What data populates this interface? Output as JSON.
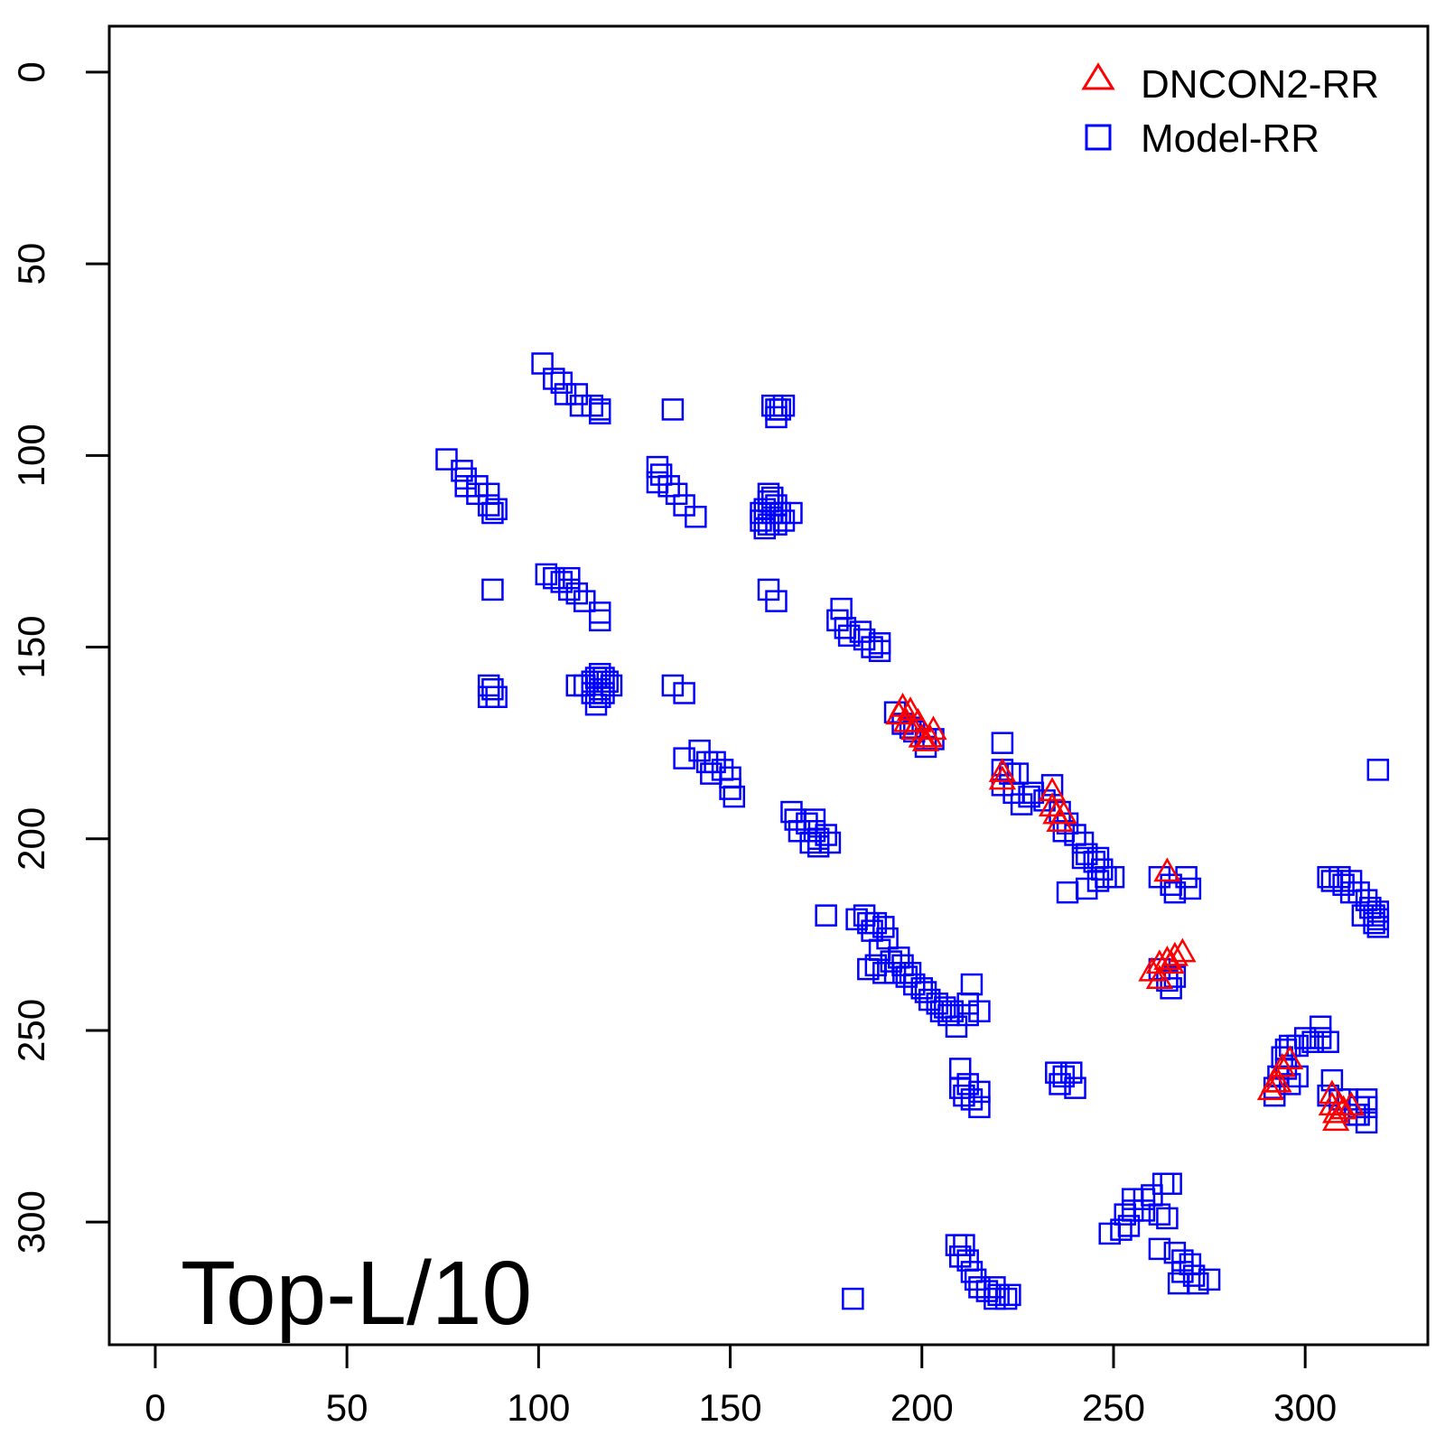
{
  "chart_data": {
    "type": "scatter",
    "title": "",
    "xlabel": "",
    "ylabel": "",
    "xlim": [
      -12,
      332
    ],
    "ylim": [
      332,
      -12
    ],
    "y_axis_inverted": true,
    "x_ticks": [
      0,
      50,
      100,
      150,
      200,
      250,
      300
    ],
    "y_ticks": [
      0,
      50,
      100,
      150,
      200,
      250,
      300
    ],
    "x_tick_labels": [
      "0",
      "50",
      "100",
      "150",
      "200",
      "250",
      "300"
    ],
    "y_tick_labels": [
      "0",
      "50",
      "100",
      "150",
      "200",
      "250",
      "300"
    ],
    "annotation": "Top-L/10",
    "legend": {
      "position": "top-right",
      "entries": [
        {
          "label": "DNCON2-RR",
          "marker": "triangle",
          "color": "#ff0000"
        },
        {
          "label": "Model-RR",
          "marker": "square",
          "color": "#0000ff"
        }
      ]
    },
    "series": [
      {
        "name": "Model-RR",
        "marker": "square",
        "color": "#0000ff",
        "points": [
          [
            101,
            76
          ],
          [
            104,
            80
          ],
          [
            106,
            81
          ],
          [
            107,
            84
          ],
          [
            110,
            84
          ],
          [
            111,
            87
          ],
          [
            114,
            87
          ],
          [
            116,
            88
          ],
          [
            116,
            89
          ],
          [
            135,
            88
          ],
          [
            161,
            87
          ],
          [
            162,
            88
          ],
          [
            163,
            88
          ],
          [
            164,
            87
          ],
          [
            162,
            90
          ],
          [
            76,
            101
          ],
          [
            80,
            104
          ],
          [
            81,
            106
          ],
          [
            81,
            108
          ],
          [
            84,
            108
          ],
          [
            84,
            110
          ],
          [
            87,
            110
          ],
          [
            87,
            113
          ],
          [
            88,
            115
          ],
          [
            89,
            114
          ],
          [
            131,
            103
          ],
          [
            132,
            105
          ],
          [
            131,
            107
          ],
          [
            134,
            108
          ],
          [
            136,
            110
          ],
          [
            138,
            113
          ],
          [
            141,
            116
          ],
          [
            158,
            115
          ],
          [
            159,
            114
          ],
          [
            160,
            112
          ],
          [
            161,
            111
          ],
          [
            161,
            115
          ],
          [
            162,
            113
          ],
          [
            163,
            115
          ],
          [
            160,
            118
          ],
          [
            159,
            119
          ],
          [
            162,
            118
          ],
          [
            164,
            117
          ],
          [
            166,
            115
          ],
          [
            158,
            117
          ],
          [
            160,
            110
          ],
          [
            88,
            135
          ],
          [
            102,
            131
          ],
          [
            104,
            132
          ],
          [
            106,
            133
          ],
          [
            108,
            132
          ],
          [
            108,
            135
          ],
          [
            110,
            136
          ],
          [
            112,
            138
          ],
          [
            116,
            141
          ],
          [
            116,
            143
          ],
          [
            160,
            135
          ],
          [
            162,
            138
          ],
          [
            179,
            140
          ],
          [
            178,
            143
          ],
          [
            180,
            145
          ],
          [
            181,
            147
          ],
          [
            184,
            146
          ],
          [
            185,
            148
          ],
          [
            187,
            150
          ],
          [
            189,
            151
          ],
          [
            189,
            149
          ],
          [
            87,
            160
          ],
          [
            88,
            161
          ],
          [
            87,
            163
          ],
          [
            89,
            163
          ],
          [
            110,
            160
          ],
          [
            112,
            160
          ],
          [
            114,
            159
          ],
          [
            115,
            158
          ],
          [
            116,
            157
          ],
          [
            117,
            158
          ],
          [
            118,
            159
          ],
          [
            119,
            160
          ],
          [
            116,
            161
          ],
          [
            114,
            162
          ],
          [
            116,
            163
          ],
          [
            115,
            165
          ],
          [
            117,
            162
          ],
          [
            135,
            160
          ],
          [
            138,
            162
          ],
          [
            193,
            167
          ],
          [
            195,
            170
          ],
          [
            197,
            171
          ],
          [
            198,
            172
          ],
          [
            201,
            174
          ],
          [
            201,
            176
          ],
          [
            203,
            174
          ],
          [
            138,
            179
          ],
          [
            142,
            177
          ],
          [
            144,
            180
          ],
          [
            146,
            180
          ],
          [
            145,
            183
          ],
          [
            148,
            182
          ],
          [
            150,
            184
          ],
          [
            150,
            187
          ],
          [
            151,
            189
          ],
          [
            221,
            175
          ],
          [
            221,
            182
          ],
          [
            223,
            183
          ],
          [
            225,
            183
          ],
          [
            221,
            186
          ],
          [
            224,
            188
          ],
          [
            226,
            191
          ],
          [
            228,
            189
          ],
          [
            166,
            193
          ],
          [
            167,
            195
          ],
          [
            168,
            198
          ],
          [
            170,
            196
          ],
          [
            172,
            195
          ],
          [
            172,
            198
          ],
          [
            173,
            200
          ],
          [
            175,
            199
          ],
          [
            171,
            201
          ],
          [
            173,
            202
          ],
          [
            176,
            201
          ],
          [
            229,
            188
          ],
          [
            232,
            190
          ],
          [
            234,
            186
          ],
          [
            236,
            193
          ],
          [
            238,
            196
          ],
          [
            237,
            198
          ],
          [
            240,
            199
          ],
          [
            242,
            201
          ],
          [
            243,
            204
          ],
          [
            245,
            206
          ],
          [
            246,
            205
          ],
          [
            247,
            208
          ],
          [
            248,
            210
          ],
          [
            250,
            210
          ],
          [
            246,
            211
          ],
          [
            238,
            214
          ],
          [
            243,
            213
          ],
          [
            242,
            205
          ],
          [
            262,
            210
          ],
          [
            265,
            212
          ],
          [
            266,
            214
          ],
          [
            269,
            210
          ],
          [
            270,
            213
          ],
          [
            175,
            220
          ],
          [
            183,
            221
          ],
          [
            185,
            220
          ],
          [
            186,
            222
          ],
          [
            187,
            224
          ],
          [
            188,
            222
          ],
          [
            190,
            223
          ],
          [
            191,
            226
          ],
          [
            189,
            229
          ],
          [
            192,
            232
          ],
          [
            194,
            231
          ],
          [
            195,
            233
          ],
          [
            193,
            235
          ],
          [
            196,
            236
          ],
          [
            197,
            235
          ],
          [
            198,
            238
          ],
          [
            200,
            239
          ],
          [
            201,
            240
          ],
          [
            202,
            242
          ],
          [
            204,
            243
          ],
          [
            205,
            245
          ],
          [
            206,
            244
          ],
          [
            207,
            246
          ],
          [
            208,
            245
          ],
          [
            209,
            249
          ],
          [
            212,
            243
          ],
          [
            213,
            238
          ],
          [
            212,
            246
          ],
          [
            215,
            245
          ],
          [
            186,
            234
          ],
          [
            188,
            233
          ],
          [
            190,
            235
          ],
          [
            262,
            234
          ],
          [
            264,
            237
          ],
          [
            265,
            239
          ],
          [
            266,
            236
          ],
          [
            306,
            210
          ],
          [
            307,
            211
          ],
          [
            309,
            210
          ],
          [
            310,
            212
          ],
          [
            312,
            211
          ],
          [
            312,
            214
          ],
          [
            314,
            214
          ],
          [
            316,
            216
          ],
          [
            317,
            218
          ],
          [
            318,
            220
          ],
          [
            319,
            219
          ],
          [
            319,
            221
          ],
          [
            318,
            222
          ],
          [
            319,
            223
          ],
          [
            315,
            220
          ],
          [
            319,
            182
          ],
          [
            304,
            249
          ],
          [
            300,
            252
          ],
          [
            298,
            254
          ],
          [
            296,
            254
          ],
          [
            295,
            255
          ],
          [
            294,
            257
          ],
          [
            295,
            260
          ],
          [
            293,
            262
          ],
          [
            292,
            265
          ],
          [
            292,
            267
          ],
          [
            298,
            262
          ],
          [
            296,
            264
          ],
          [
            302,
            253
          ],
          [
            304,
            252
          ],
          [
            306,
            253
          ],
          [
            307,
            263
          ],
          [
            306,
            267
          ],
          [
            309,
            268
          ],
          [
            311,
            268
          ],
          [
            314,
            270
          ],
          [
            316,
            270
          ],
          [
            314,
            272
          ],
          [
            316,
            274
          ],
          [
            313,
            272
          ],
          [
            316,
            268
          ],
          [
            210,
            260
          ],
          [
            210,
            265
          ],
          [
            211,
            267
          ],
          [
            212,
            264
          ],
          [
            213,
            268
          ],
          [
            215,
            266
          ],
          [
            215,
            270
          ],
          [
            235,
            261
          ],
          [
            236,
            264
          ],
          [
            237,
            262
          ],
          [
            239,
            261
          ],
          [
            240,
            265
          ],
          [
            263,
            290
          ],
          [
            265,
            290
          ],
          [
            260,
            293
          ],
          [
            258,
            294
          ],
          [
            255,
            294
          ],
          [
            255,
            297
          ],
          [
            253,
            298
          ],
          [
            254,
            301
          ],
          [
            252,
            302
          ],
          [
            249,
            303
          ],
          [
            258,
            297
          ],
          [
            262,
            298
          ],
          [
            264,
            299
          ],
          [
            209,
            306
          ],
          [
            211,
            306
          ],
          [
            210,
            309
          ],
          [
            212,
            310
          ],
          [
            213,
            313
          ],
          [
            214,
            315
          ],
          [
            215,
            317
          ],
          [
            217,
            318
          ],
          [
            219,
            317
          ],
          [
            220,
            319
          ],
          [
            222,
            320
          ],
          [
            223,
            319
          ],
          [
            219,
            320
          ],
          [
            182,
            320
          ],
          [
            262,
            307
          ],
          [
            266,
            308
          ],
          [
            268,
            310
          ],
          [
            268,
            313
          ],
          [
            270,
            311
          ],
          [
            271,
            314
          ],
          [
            272,
            316
          ],
          [
            275,
            315
          ],
          [
            267,
            316
          ]
        ]
      },
      {
        "name": "DNCON2-RR",
        "marker": "triangle",
        "color": "#ff0000",
        "points": [
          [
            194,
            168
          ],
          [
            195,
            166
          ],
          [
            197,
            167
          ],
          [
            196,
            170
          ],
          [
            198,
            172
          ],
          [
            199,
            170
          ],
          [
            200,
            174
          ],
          [
            201,
            175
          ],
          [
            203,
            172
          ],
          [
            202,
            174
          ],
          [
            221,
            183
          ],
          [
            221,
            185
          ],
          [
            234,
            188
          ],
          [
            234,
            192
          ],
          [
            235,
            194
          ],
          [
            236,
            196
          ],
          [
            237,
            194
          ],
          [
            264,
            209
          ],
          [
            260,
            235
          ],
          [
            262,
            233
          ],
          [
            264,
            232
          ],
          [
            265,
            233
          ],
          [
            266,
            231
          ],
          [
            268,
            230
          ],
          [
            262,
            237
          ],
          [
            294,
            260
          ],
          [
            296,
            258
          ],
          [
            292,
            264
          ],
          [
            291,
            266
          ],
          [
            293,
            264
          ],
          [
            307,
            267
          ],
          [
            307,
            270
          ],
          [
            308,
            272
          ],
          [
            309,
            270
          ],
          [
            310,
            271
          ],
          [
            312,
            270
          ],
          [
            308,
            274
          ]
        ]
      }
    ]
  }
}
